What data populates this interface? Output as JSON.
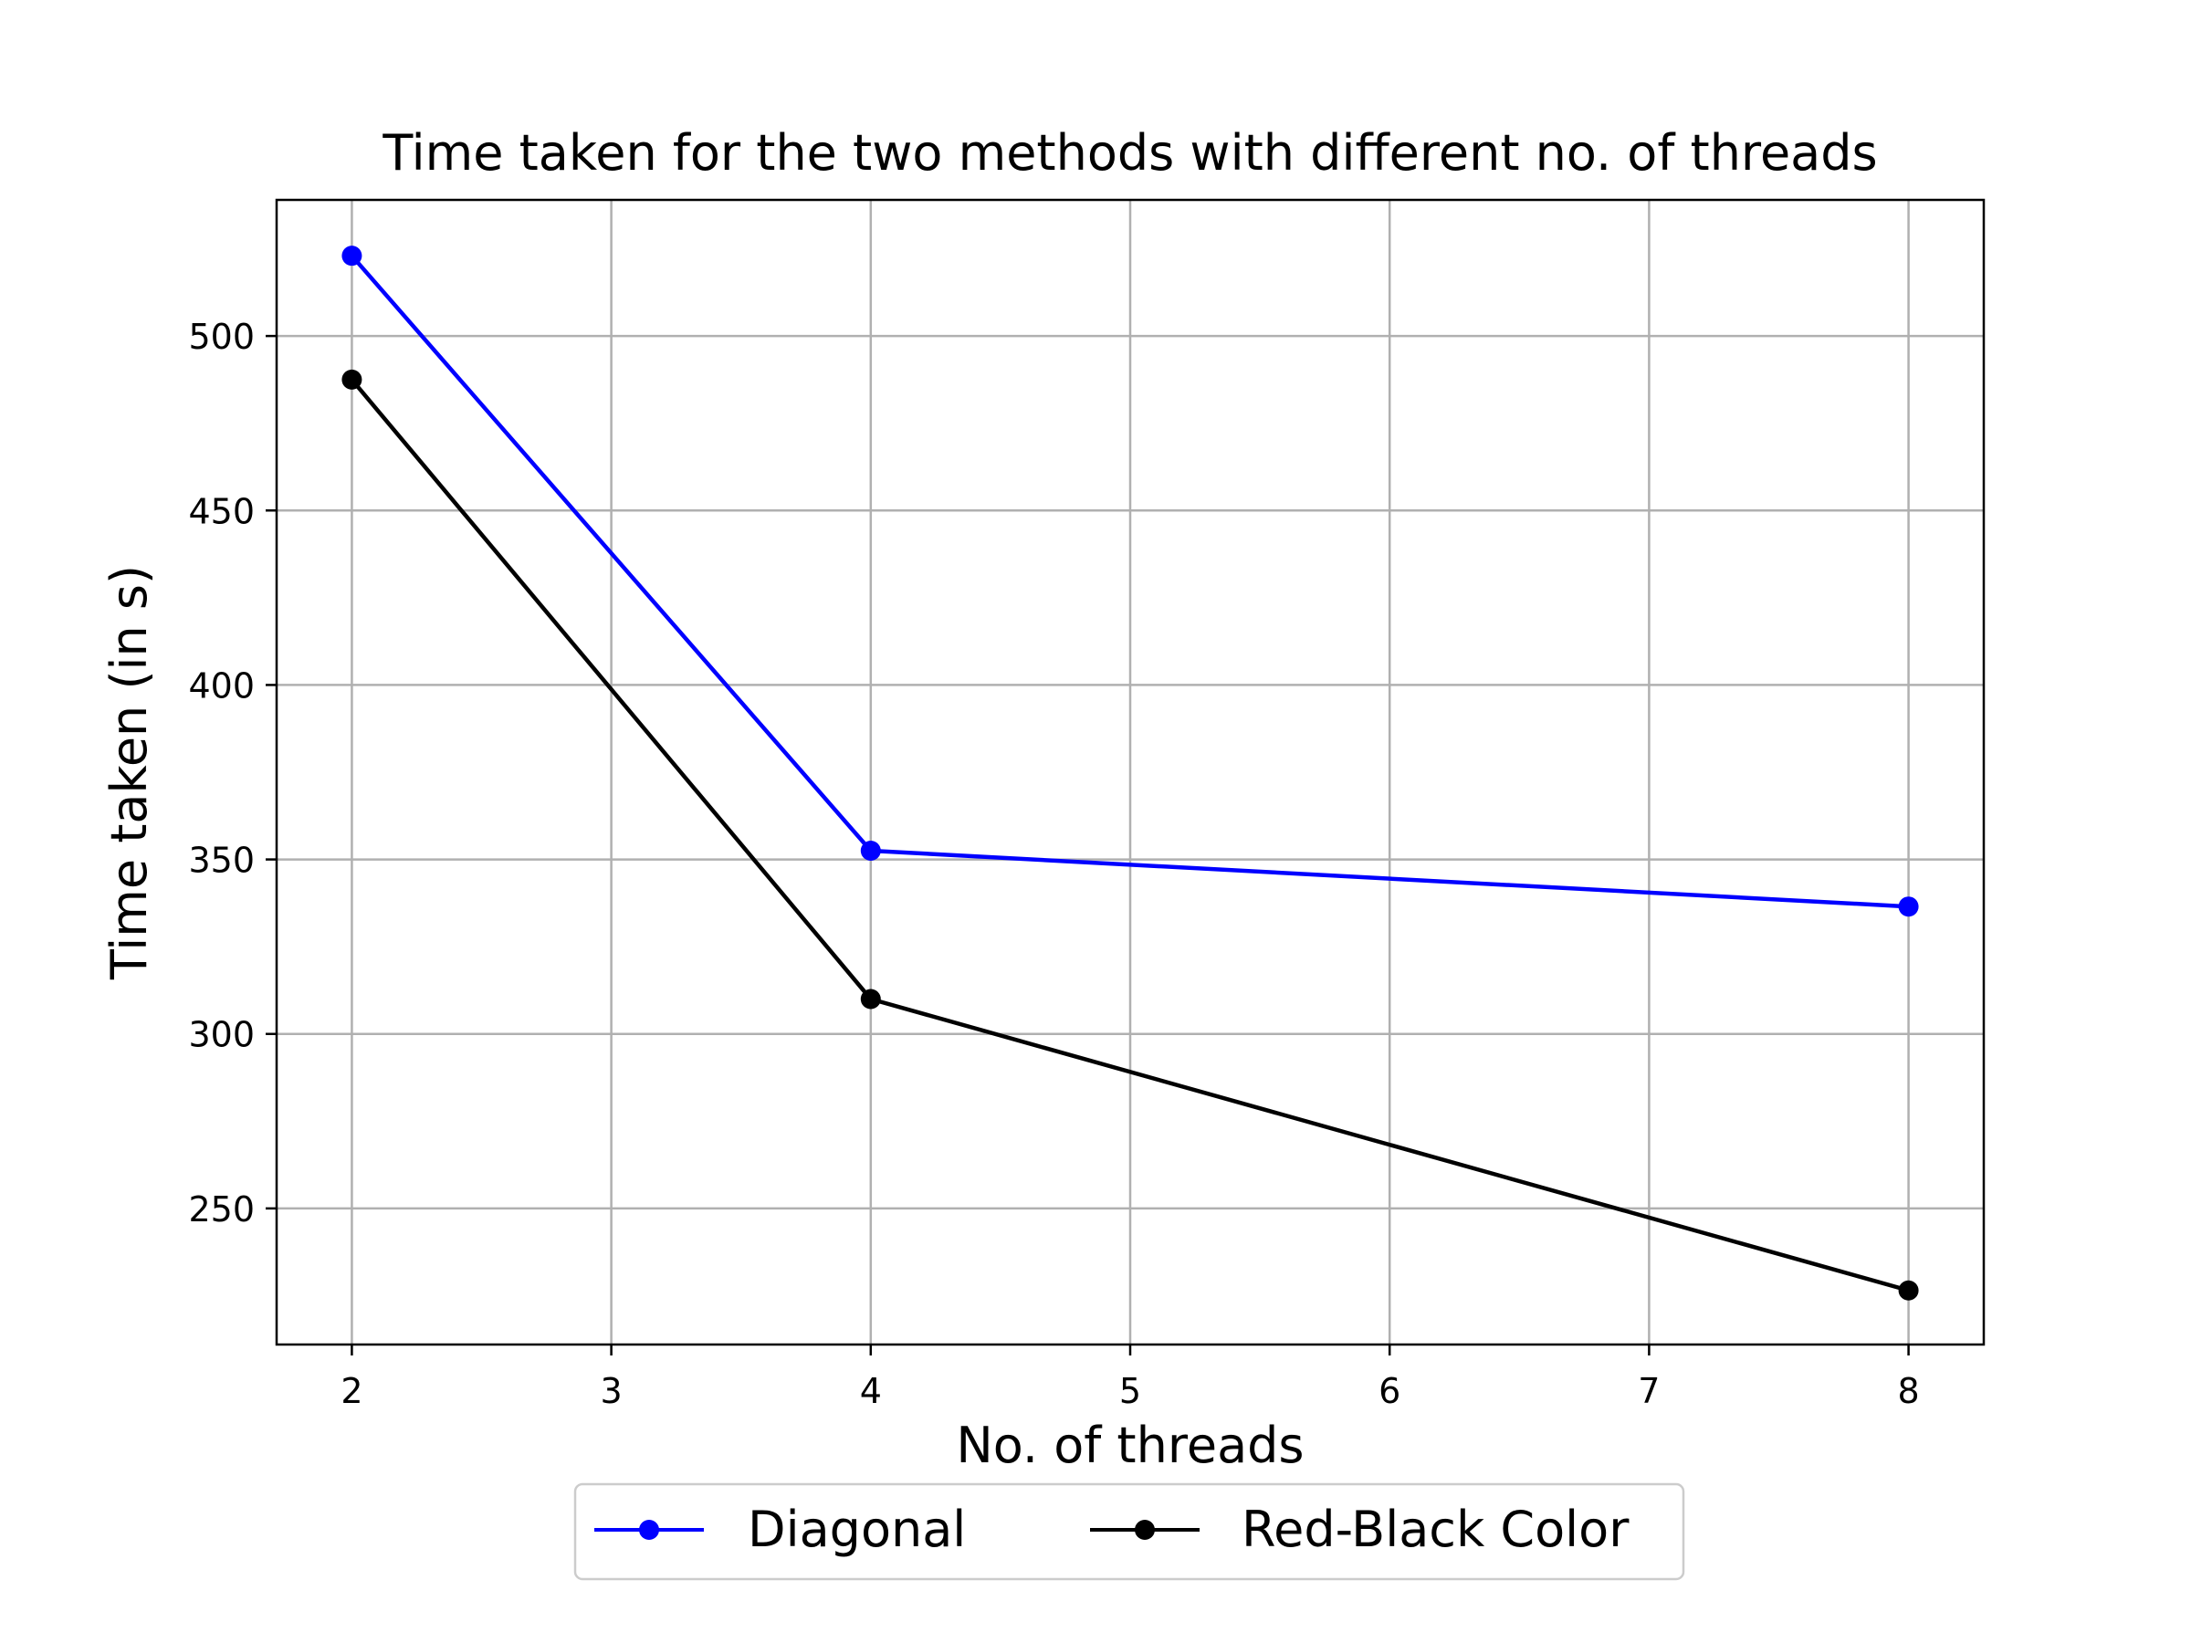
{
  "chart_data": {
    "type": "line",
    "title": "Time taken for the two methods with different no. of threads",
    "xlabel": "No. of threads",
    "ylabel": "Time taken (in s)",
    "xlim": [
      1.71,
      8.29
    ],
    "ylim": [
      211,
      539
    ],
    "x_ticks": [
      2,
      3,
      4,
      5,
      6,
      7,
      8
    ],
    "y_ticks": [
      250,
      300,
      350,
      400,
      450,
      500
    ],
    "grid": true,
    "legend_position": "bottom-center",
    "series": [
      {
        "name": "Diagonal",
        "color": "#0000ff",
        "x": [
          2,
          4,
          8
        ],
        "y": [
          523,
          352.5,
          336.5
        ]
      },
      {
        "name": "Red-Black Color",
        "color": "#000000",
        "x": [
          2,
          4,
          8
        ],
        "y": [
          487.5,
          310,
          226.5
        ]
      }
    ]
  }
}
